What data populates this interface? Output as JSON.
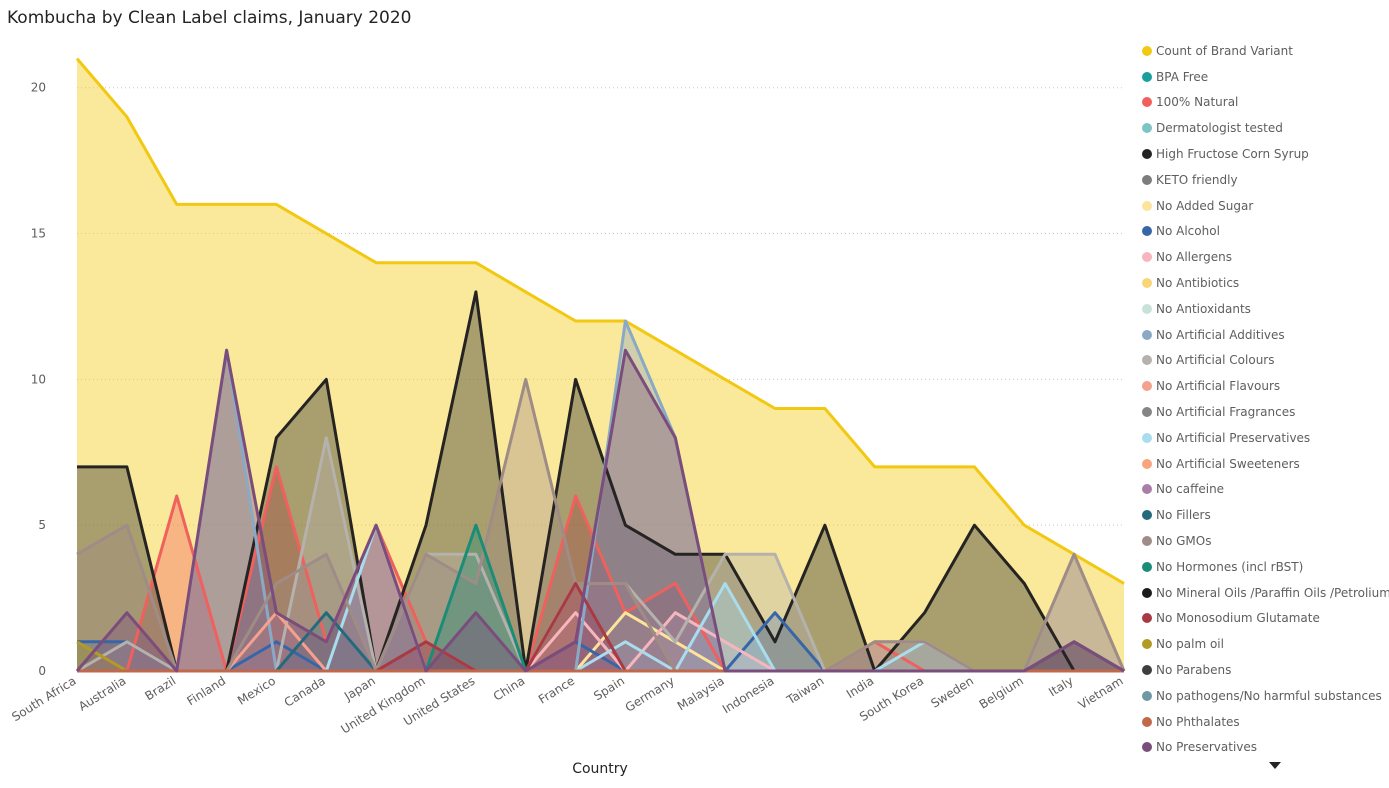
{
  "chart_data": {
    "type": "area",
    "title": "Kombucha by Clean Label claims, January 2020",
    "xlabel": "Country",
    "ylabel": "",
    "ylim": [
      0,
      21.5
    ],
    "yticks": [
      0,
      5,
      10,
      15,
      20
    ],
    "grid": true,
    "legend_position": "right",
    "categories": [
      "South Africa",
      "Australia",
      "Brazil",
      "Finland",
      "Mexico",
      "Canada",
      "Japan",
      "United Kingdom",
      "United States",
      "China",
      "France",
      "Spain",
      "Germany",
      "Malaysia",
      "Indonesia",
      "Taiwan",
      "India",
      "South Korea",
      "Sweden",
      "Belgium",
      "Italy",
      "Vietnam"
    ],
    "series": [
      {
        "name": "Count of Brand Variant",
        "color": "#F2C811",
        "values": [
          21,
          19,
          16,
          16,
          16,
          15,
          14,
          14,
          14,
          13,
          12,
          12,
          11,
          10,
          9,
          9,
          7,
          7,
          7,
          5,
          4,
          3
        ]
      },
      {
        "name": "BPA Free",
        "color": "#1A9E9E",
        "values": [
          0,
          0,
          0,
          0,
          0,
          0,
          0,
          0,
          0,
          0,
          0,
          0,
          0,
          0,
          0,
          0,
          0,
          0,
          0,
          0,
          0,
          0
        ]
      },
      {
        "name": "100% Natural",
        "color": "#F0605D",
        "values": [
          0,
          0,
          6,
          0,
          7,
          1,
          5,
          1,
          0,
          0,
          6,
          2,
          3,
          0,
          0,
          0,
          1,
          0,
          0,
          0,
          0,
          0
        ]
      },
      {
        "name": "Dermatologist tested",
        "color": "#7FC4C4",
        "values": [
          0,
          0,
          0,
          0,
          0,
          0,
          0,
          0,
          0,
          0,
          0,
          0,
          0,
          0,
          0,
          0,
          0,
          0,
          0,
          0,
          0,
          0
        ]
      },
      {
        "name": "High Fructose Corn Syrup",
        "color": "#252423",
        "values": [
          7,
          7,
          0,
          0,
          8,
          10,
          0,
          5,
          13,
          0,
          10,
          5,
          4,
          4,
          1,
          5,
          0,
          2,
          5,
          3,
          0,
          0
        ]
      },
      {
        "name": "KETO friendly",
        "color": "#7D7D7D",
        "values": [
          0,
          0,
          0,
          0,
          0,
          0,
          0,
          0,
          0,
          0,
          0,
          0,
          0,
          0,
          0,
          0,
          0,
          0,
          0,
          0,
          0,
          0
        ]
      },
      {
        "name": "No Added Sugar",
        "color": "#FCE49A",
        "values": [
          0,
          0,
          0,
          0,
          0,
          0,
          0,
          0,
          0,
          0,
          0,
          2,
          1,
          0,
          0,
          0,
          0,
          0,
          0,
          0,
          0,
          0
        ]
      },
      {
        "name": "No Alcohol",
        "color": "#3766A8",
        "values": [
          1,
          1,
          0,
          0,
          1,
          0,
          0,
          0,
          0,
          0,
          1,
          0,
          0,
          0,
          2,
          0,
          0,
          0,
          0,
          0,
          0,
          0
        ]
      },
      {
        "name": "No Allergens",
        "color": "#F7B6BE",
        "values": [
          0,
          0,
          0,
          0,
          0,
          0,
          0,
          0,
          0,
          0,
          2,
          0,
          2,
          1,
          0,
          0,
          0,
          0,
          0,
          0,
          0,
          0
        ]
      },
      {
        "name": "No Antibiotics",
        "color": "#F8D577",
        "values": [
          0,
          0,
          0,
          0,
          0,
          0,
          0,
          0,
          0,
          0,
          0,
          0,
          0,
          0,
          0,
          0,
          0,
          0,
          0,
          0,
          0,
          0
        ]
      },
      {
        "name": "No Antioxidants",
        "color": "#C9E2D8",
        "values": [
          0,
          0,
          0,
          0,
          0,
          0,
          0,
          0,
          0,
          0,
          0,
          0,
          0,
          0,
          0,
          0,
          0,
          0,
          0,
          0,
          0,
          0
        ]
      },
      {
        "name": "No Artificial Additives",
        "color": "#8AA9C6",
        "values": [
          0,
          0,
          0,
          11,
          0,
          0,
          0,
          0,
          0,
          0,
          0,
          12,
          8,
          0,
          0,
          0,
          0,
          0,
          0,
          0,
          0,
          0
        ]
      },
      {
        "name": "No Artificial Colours",
        "color": "#B5B1AD",
        "values": [
          0,
          1,
          0,
          0,
          0,
          8,
          0,
          4,
          4,
          0,
          3,
          3,
          1,
          4,
          4,
          0,
          1,
          1,
          0,
          0,
          4,
          0
        ]
      },
      {
        "name": "No Artificial Flavours",
        "color": "#F6A08E",
        "values": [
          0,
          0,
          0,
          0,
          2,
          0,
          0,
          0,
          0,
          0,
          0,
          0,
          0,
          0,
          0,
          0,
          0,
          0,
          0,
          0,
          0,
          0
        ]
      },
      {
        "name": "No Artificial Fragrances",
        "color": "#858585",
        "values": [
          0,
          0,
          0,
          0,
          0,
          0,
          0,
          0,
          0,
          0,
          0,
          0,
          0,
          0,
          0,
          0,
          0,
          0,
          0,
          0,
          0,
          0
        ]
      },
      {
        "name": "No Artificial Preservatives",
        "color": "#A9DCEC",
        "values": [
          0,
          0,
          0,
          0,
          0,
          0,
          5,
          0,
          0,
          0,
          0,
          1,
          0,
          3,
          0,
          0,
          0,
          1,
          0,
          0,
          0,
          0
        ]
      },
      {
        "name": "No Artificial Sweeteners",
        "color": "#F9A47E",
        "values": [
          0,
          0,
          0,
          0,
          0,
          0,
          0,
          0,
          0,
          0,
          0,
          0,
          0,
          0,
          0,
          0,
          0,
          0,
          0,
          0,
          0,
          0
        ]
      },
      {
        "name": "No caffeine",
        "color": "#A97FA8",
        "values": [
          0,
          0,
          0,
          0,
          0,
          0,
          0,
          0,
          0,
          0,
          0,
          0,
          0,
          0,
          0,
          0,
          0,
          0,
          0,
          0,
          0,
          0
        ]
      },
      {
        "name": "No Fillers",
        "color": "#236B7C",
        "values": [
          0,
          0,
          0,
          0,
          0,
          2,
          0,
          0,
          0,
          0,
          0,
          0,
          0,
          0,
          0,
          0,
          0,
          0,
          0,
          0,
          0,
          0
        ]
      },
      {
        "name": "No GMOs",
        "color": "#A08C86",
        "values": [
          4,
          5,
          0,
          0,
          3,
          4,
          0,
          4,
          3,
          10,
          3,
          3,
          0,
          0,
          0,
          0,
          1,
          1,
          0,
          0,
          4,
          0
        ]
      },
      {
        "name": "No Hormones (incl rBST)",
        "color": "#1A8C78",
        "values": [
          0,
          0,
          0,
          0,
          0,
          0,
          0,
          0,
          5,
          0,
          0,
          0,
          0,
          0,
          0,
          0,
          0,
          0,
          0,
          0,
          0,
          0
        ]
      },
      {
        "name": "No Mineral Oils /Paraffin Oils /Petrolium",
        "color": "#1B1B1B",
        "values": [
          0,
          0,
          0,
          0,
          0,
          0,
          0,
          0,
          0,
          0,
          0,
          0,
          0,
          0,
          0,
          0,
          0,
          0,
          0,
          0,
          0,
          0
        ]
      },
      {
        "name": "No Monosodium Glutamate",
        "color": "#A83A44",
        "values": [
          0,
          0,
          0,
          0,
          0,
          0,
          0,
          1,
          0,
          0,
          3,
          0,
          0,
          0,
          0,
          0,
          0,
          0,
          0,
          0,
          0,
          0
        ]
      },
      {
        "name": "No palm oil",
        "color": "#B39A22",
        "values": [
          1,
          0,
          0,
          0,
          0,
          0,
          0,
          0,
          0,
          0,
          0,
          0,
          0,
          0,
          0,
          0,
          0,
          0,
          0,
          0,
          0,
          0
        ]
      },
      {
        "name": "No Parabens",
        "color": "#3E3E3E",
        "values": [
          0,
          0,
          0,
          0,
          0,
          0,
          0,
          0,
          0,
          0,
          0,
          0,
          0,
          0,
          0,
          0,
          0,
          0,
          0,
          0,
          1,
          0
        ]
      },
      {
        "name": "No pathogens/No harmful substances",
        "color": "#6F98A5",
        "values": [
          0,
          0,
          0,
          0,
          0,
          0,
          0,
          0,
          0,
          0,
          0,
          0,
          0,
          0,
          0,
          0,
          0,
          0,
          0,
          0,
          0,
          0
        ]
      },
      {
        "name": "No Phthalates",
        "color": "#C2684A",
        "values": [
          0,
          0,
          0,
          0,
          0,
          0,
          0,
          0,
          0,
          0,
          0,
          0,
          0,
          0,
          0,
          0,
          0,
          0,
          0,
          0,
          0,
          0
        ]
      },
      {
        "name": "No Preservatives",
        "color": "#7A4D7C",
        "values": [
          0,
          2,
          0,
          11,
          2,
          1,
          5,
          0,
          2,
          0,
          1,
          11,
          8,
          0,
          0,
          0,
          0,
          0,
          0,
          0,
          1,
          0
        ]
      }
    ]
  }
}
